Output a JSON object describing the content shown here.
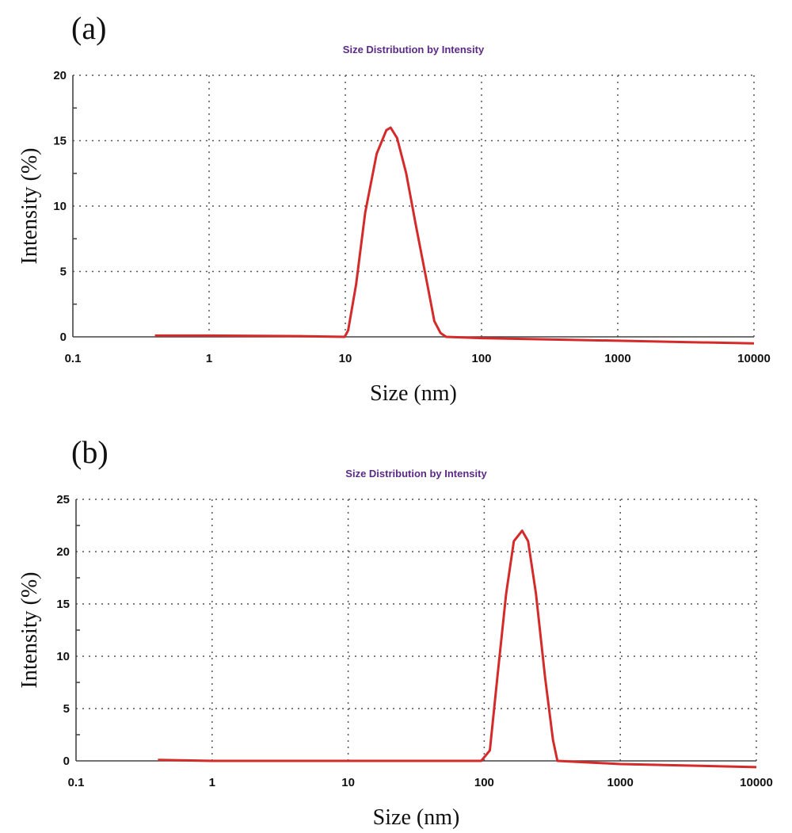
{
  "chart_data": [
    {
      "type": "line",
      "panel_label": "(a)",
      "title": "Size Distribution by Intensity",
      "title_color": "#5b2a86",
      "xlabel": "Size (nm)",
      "ylabel": "Intensity (%)",
      "xscale": "log",
      "xlim": [
        0.1,
        10000
      ],
      "ylim": [
        0,
        20
      ],
      "xticks": [
        "0.1",
        "1",
        "10",
        "100",
        "1000",
        "10000"
      ],
      "yticks": [
        "0",
        "5",
        "10",
        "15",
        "20"
      ],
      "grid": true,
      "tick_color": "#111111",
      "series": [
        {
          "color": "#d42a2a",
          "x": [
            0.4,
            1,
            5,
            9.9,
            10.5,
            12,
            14,
            17,
            20,
            21.5,
            24,
            28,
            33,
            40,
            45,
            50,
            55,
            100,
            1000,
            10000
          ],
          "y": [
            0.1,
            0.1,
            0.05,
            0,
            0.5,
            4,
            9.5,
            14,
            15.8,
            16,
            15.2,
            12.5,
            8.5,
            4,
            1.2,
            0.3,
            0,
            -0.1,
            -0.3,
            -0.5
          ]
        }
      ]
    },
    {
      "type": "line",
      "panel_label": "(b)",
      "title": "Size Distribution by Intensity",
      "title_color": "#5b2a86",
      "xlabel": "Size (nm)",
      "ylabel": "Intensity (%)",
      "xscale": "log",
      "xlim": [
        0.1,
        10000
      ],
      "ylim": [
        0,
        25
      ],
      "xticks": [
        "0.1",
        "1",
        "10",
        "100",
        "1000",
        "10000"
      ],
      "yticks": [
        "0",
        "5",
        "10",
        "15",
        "20",
        "25"
      ],
      "grid": true,
      "tick_color": "#5b2a86",
      "series": [
        {
          "color": "#d42a2a",
          "x": [
            0.4,
            1,
            10,
            95,
            110,
            125,
            145,
            165,
            190,
            210,
            240,
            280,
            320,
            345,
            1000,
            10000
          ],
          "y": [
            0.1,
            0,
            0,
            0,
            1,
            8,
            16,
            21,
            22,
            21,
            16,
            8,
            2,
            0,
            -0.3,
            -0.6
          ]
        }
      ]
    }
  ]
}
